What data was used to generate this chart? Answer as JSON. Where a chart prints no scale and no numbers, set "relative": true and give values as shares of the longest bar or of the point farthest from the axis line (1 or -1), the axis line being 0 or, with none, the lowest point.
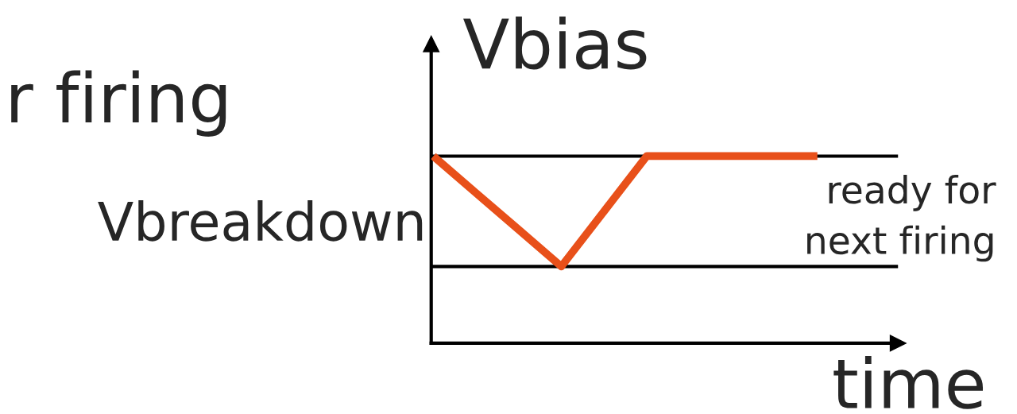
{
  "chart_data": {
    "type": "line",
    "relative": true,
    "ylabel": "Vbias",
    "xlabel": "time",
    "categories": [
      null,
      null,
      null,
      null,
      null,
      null,
      null,
      null,
      null,
      null
    ],
    "series": [
      {
        "color": "#e8501a",
        "values": [
          1,
          0.803,
          0.607,
          0.41,
          0.705,
          1,
          1,
          1,
          1,
          1
        ]
      }
    ],
    "ref_lines": [
      {
        "axis": "y",
        "value": 1,
        "label": "ready for\nnext firing",
        "color": "#000000"
      },
      {
        "axis": "y",
        "value": 0.41,
        "label": "Vbreakdown",
        "color": "#000000"
      }
    ],
    "annotations": [
      "r firing"
    ],
    "grid": false,
    "marker": "none",
    "line_style": "solid"
  }
}
